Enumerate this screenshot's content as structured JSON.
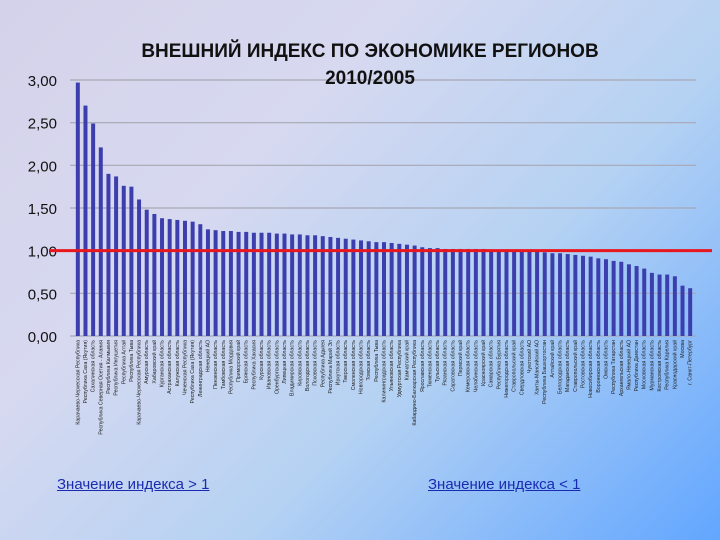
{
  "chart_data": {
    "type": "bar",
    "title": "ВНЕШНИЙ ИНДЕКС ПО ЭКОНОМИКЕ РЕГИОНОВ",
    "subtitle": "2010/2005",
    "xlabel": "",
    "ylabel": "",
    "ylim": [
      0,
      3
    ],
    "yticks": [
      "0,00",
      "0,50",
      "1,00",
      "1,50",
      "2,00",
      "2,50",
      "3,00"
    ],
    "grid": true,
    "reference_line": 1.0,
    "categories": [
      "Карачаево-Черкесская Республика",
      "Республика Саха (Якутия)",
      "Сахалинская область",
      "Республика Северная Осетия - Алания",
      "Республика Калмыкия",
      "Республика Ингушетия",
      "Республика Алтай",
      "Республика Тыва",
      "Карачаево-Черкесская Республика",
      "Амурская область",
      "Хабаровский край",
      "Курганская область",
      "Астраханская область",
      "Калужская область",
      "Чеченская Республика",
      "Республика Саха (Якутия)",
      "Ленинградская область",
      "Ненецкий АО",
      "Пензенская область",
      "Тамбовская область",
      "Республика Мордовия",
      "Приморский край",
      "Брянская область",
      "Республика Хакасия",
      "Курская область",
      "Ивановская область",
      "Оренбургская область",
      "Липецкая область",
      "Владимирская область",
      "Кировская область",
      "Вологодская область",
      "Псковская область",
      "Республика Адыгея",
      "Республика Марий Эл",
      "Иркутская область",
      "Тверская область",
      "Смоленская область",
      "Новгородская область",
      "Томская область",
      "Республика Тыва",
      "Калининградская область",
      "Ульяновская область",
      "Удмуртская Республика",
      "Камчатский край",
      "Кабардино-Балкарская Республика",
      "Ярославская область",
      "Тюменская область",
      "Тульская область",
      "Рязанская область",
      "Саратовская область",
      "Пермский край",
      "Кемеровская область",
      "Челябинская область",
      "Красноярский край",
      "Самарская область",
      "Республика Бурятия",
      "Нижегородская область",
      "Ставропольский край",
      "Свердловская область",
      "Чукотский АО",
      "Ханты-Мансийский АО",
      "Республика Башкортостан",
      "Алтайский край",
      "Белгородская область",
      "Магаданская область",
      "Ставропольский край",
      "Ростовская область",
      "Новосибирская область",
      "Воронежская область",
      "Омская область",
      "Республика Татарстан",
      "Архангельская область",
      "Ямало-Ненецкий АО",
      "Республика Дагестан",
      "Московская область",
      "Мурманская область",
      "Костромская область",
      "Республика Карелия",
      "Краснодарский край",
      "Москва",
      "г. Санкт-Петербург"
    ],
    "values": [
      2.97,
      2.7,
      2.49,
      2.21,
      1.9,
      1.87,
      1.76,
      1.75,
      1.6,
      1.48,
      1.43,
      1.38,
      1.37,
      1.36,
      1.35,
      1.34,
      1.31,
      1.25,
      1.24,
      1.23,
      1.23,
      1.22,
      1.22,
      1.21,
      1.21,
      1.21,
      1.2,
      1.2,
      1.19,
      1.19,
      1.18,
      1.18,
      1.17,
      1.16,
      1.15,
      1.14,
      1.13,
      1.12,
      1.11,
      1.1,
      1.1,
      1.09,
      1.08,
      1.07,
      1.06,
      1.04,
      1.03,
      1.03,
      1.02,
      1.02,
      1.02,
      1.02,
      1.02,
      1.02,
      1.01,
      1.01,
      1.01,
      1.0,
      1.0,
      0.99,
      0.99,
      0.98,
      0.97,
      0.97,
      0.96,
      0.95,
      0.94,
      0.93,
      0.91,
      0.9,
      0.88,
      0.87,
      0.84,
      0.82,
      0.79,
      0.74,
      0.72,
      0.72,
      0.7,
      0.59,
      0.56
    ]
  },
  "legend": {
    "above_label": "Значение индекса > 1",
    "below_label": "Значение индекса < 1"
  },
  "colors": {
    "bar": "#3b3eac",
    "reference_line": "#e8171e",
    "grid": "#a7a7b4",
    "axis_text": "#111111"
  }
}
